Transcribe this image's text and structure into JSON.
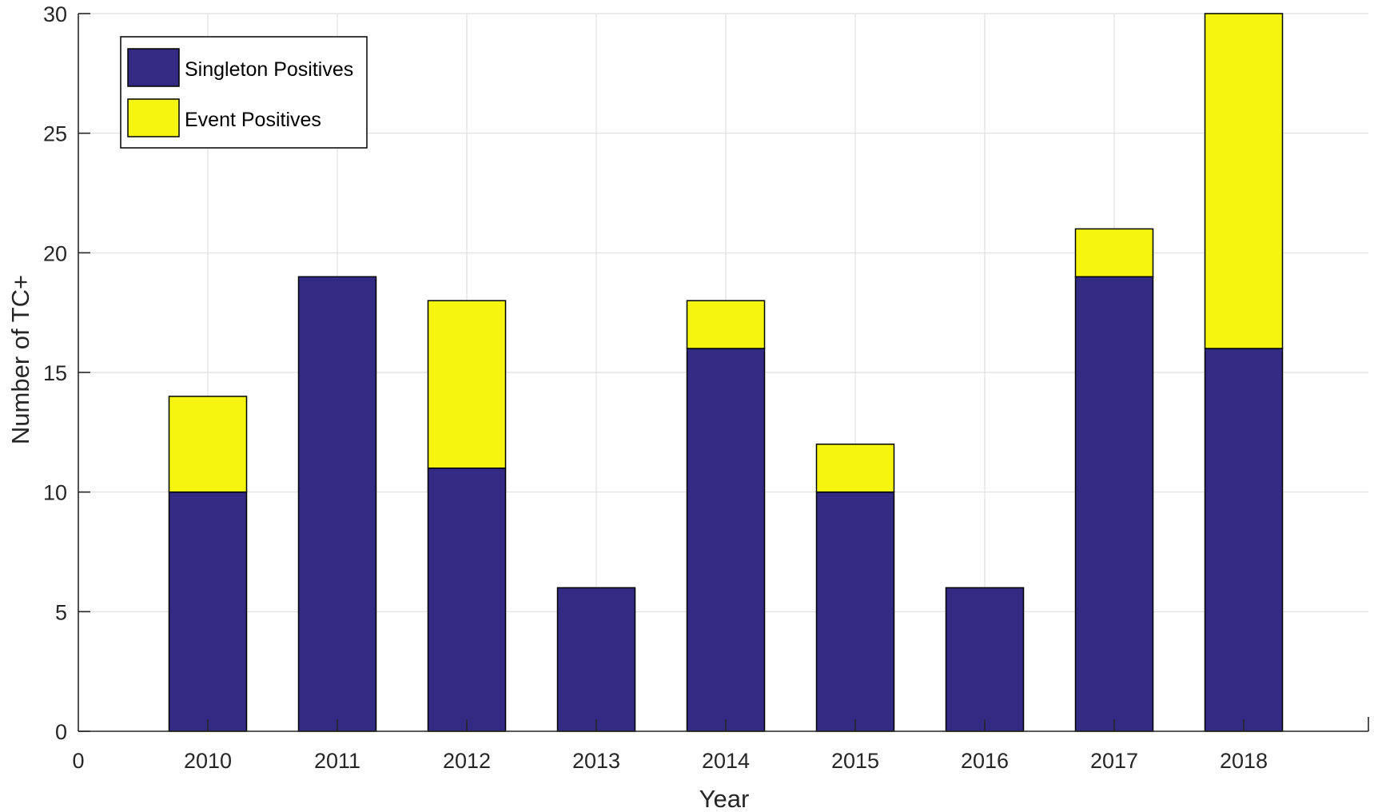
{
  "chart_data": {
    "type": "bar",
    "stacked": true,
    "title": "",
    "xlabel": "Year",
    "ylabel": "Number of TC+",
    "categories": [
      "2010",
      "2011",
      "2012",
      "2013",
      "2014",
      "2015",
      "2016",
      "2017",
      "2018"
    ],
    "x_extra_tick_labels": [
      "0"
    ],
    "series": [
      {
        "name": "Singleton Positives",
        "color": "#332a84",
        "values": [
          10,
          19,
          11,
          6,
          16,
          10,
          6,
          19,
          16
        ]
      },
      {
        "name": "Event Positives",
        "color": "#f5f50f",
        "values": [
          4,
          0,
          7,
          0,
          2,
          2,
          0,
          2,
          14
        ]
      }
    ],
    "ylim": [
      0,
      30
    ],
    "yticks": [
      0,
      5,
      10,
      15,
      20,
      25,
      30
    ],
    "grid": true,
    "legend_position": "top-left"
  }
}
